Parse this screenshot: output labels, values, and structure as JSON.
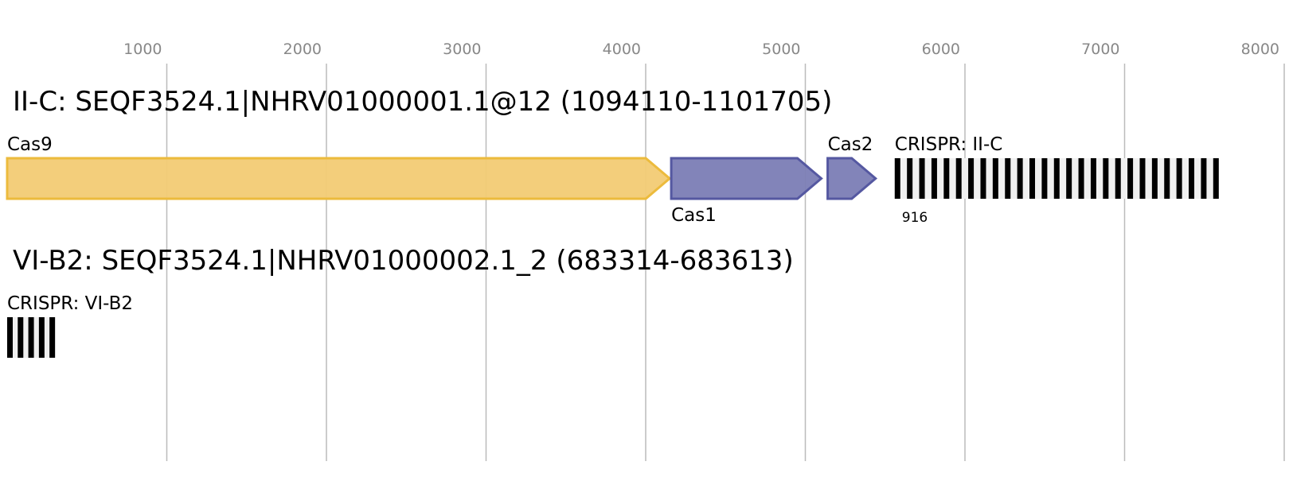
{
  "axis": {
    "ticks": [
      1000,
      2000,
      3000,
      4000,
      5000,
      6000,
      7000,
      8000
    ],
    "range": [
      0,
      8000
    ],
    "tick_color": "#888888",
    "grid_color": "#bbbbbb"
  },
  "tracks": [
    {
      "title": "II-C: SEQF3524.1|NHRV01000001.1@12 (1094110-1101705)",
      "features": [
        {
          "label": "Cas9",
          "type": "gene",
          "start": 0,
          "end": 4150,
          "fill": "#f2cb74",
          "stroke": "#ecbb3d",
          "label_pos": "above"
        },
        {
          "label": "Cas1",
          "type": "gene",
          "start": 4160,
          "end": 5100,
          "fill": "#7b7db5",
          "stroke": "#5558a1",
          "label_pos": "below"
        },
        {
          "label": "Cas2",
          "type": "gene",
          "start": 5140,
          "end": 5440,
          "fill": "#7b7db5",
          "stroke": "#5558a1",
          "label_pos": "above"
        }
      ],
      "crispr": {
        "label": "CRISPR: II-C",
        "start": 5560,
        "end": 7590,
        "repeats": 27,
        "count_label": "916"
      }
    },
    {
      "title": "VI-B2: SEQF3524.1|NHRV01000002.1_2 (683314-683613)",
      "features": [],
      "crispr": {
        "label": "CRISPR: VI-B2",
        "start": 0,
        "end": 300,
        "repeats": 5
      }
    }
  ]
}
